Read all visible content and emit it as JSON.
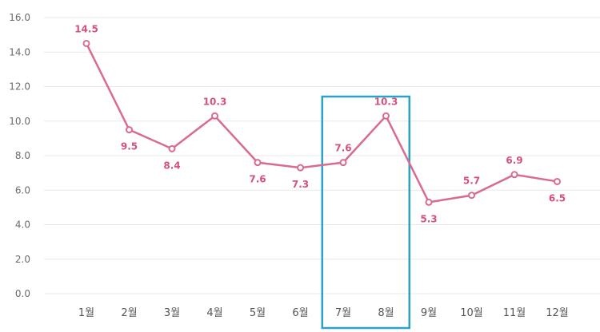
{
  "chart_data": {
    "type": "line",
    "categories": [
      "1월",
      "2월",
      "3월",
      "4월",
      "5월",
      "6월",
      "7월",
      "8월",
      "9월",
      "10월",
      "11월",
      "12월"
    ],
    "values": [
      14.5,
      9.5,
      8.4,
      10.3,
      7.6,
      7.3,
      7.6,
      10.3,
      5.3,
      5.7,
      6.9,
      6.5
    ],
    "data_labels": [
      "14.5",
      "9.5",
      "8.4",
      "10.3",
      "7.6",
      "7.3",
      "7.6",
      "10.3",
      "5.3",
      "5.7",
      "6.9",
      "6.5"
    ],
    "ylim": [
      0,
      16
    ],
    "yticks": [
      "0.0",
      "2.0",
      "4.0",
      "6.0",
      "8.0",
      "10.0",
      "12.0",
      "14.0",
      "16.0"
    ],
    "grid": true,
    "highlight_categories": [
      "7월",
      "8월"
    ],
    "colors": {
      "line": "#d96b92",
      "label": "#d6507f",
      "highlight": "#2ba3c6",
      "grid": "#e8e8e8"
    }
  }
}
